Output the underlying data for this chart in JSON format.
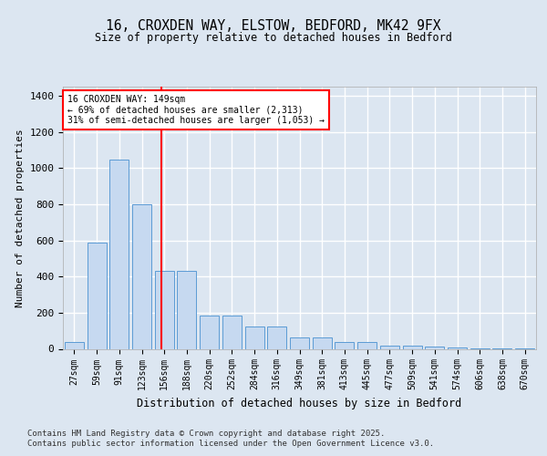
{
  "title": "16, CROXDEN WAY, ELSTOW, BEDFORD, MK42 9FX",
  "subtitle": "Size of property relative to detached houses in Bedford",
  "xlabel": "Distribution of detached houses by size in Bedford",
  "ylabel": "Number of detached properties",
  "bar_color": "#c6d9f0",
  "bar_edge_color": "#5b9bd5",
  "background_color": "#dce6f1",
  "plot_bg_color": "#dce6f1",
  "grid_color": "#ffffff",
  "categories": [
    "27sqm",
    "59sqm",
    "91sqm",
    "123sqm",
    "156sqm",
    "188sqm",
    "220sqm",
    "252sqm",
    "284sqm",
    "316sqm",
    "349sqm",
    "381sqm",
    "413sqm",
    "445sqm",
    "477sqm",
    "509sqm",
    "541sqm",
    "574sqm",
    "606sqm",
    "638sqm",
    "670sqm"
  ],
  "values": [
    40,
    590,
    1045,
    800,
    430,
    430,
    185,
    185,
    125,
    125,
    65,
    65,
    40,
    40,
    20,
    20,
    15,
    10,
    5,
    5,
    2
  ],
  "ylim": [
    0,
    1450
  ],
  "yticks": [
    0,
    200,
    400,
    600,
    800,
    1000,
    1200,
    1400
  ],
  "red_line_x": 3.85,
  "annotation_line1": "16 CROXDEN WAY: 149sqm",
  "annotation_line2": "← 69% of detached houses are smaller (2,313)",
  "annotation_line3": "31% of semi-detached houses are larger (1,053) →",
  "footer_line1": "Contains HM Land Registry data © Crown copyright and database right 2025.",
  "footer_line2": "Contains public sector information licensed under the Open Government Licence v3.0."
}
